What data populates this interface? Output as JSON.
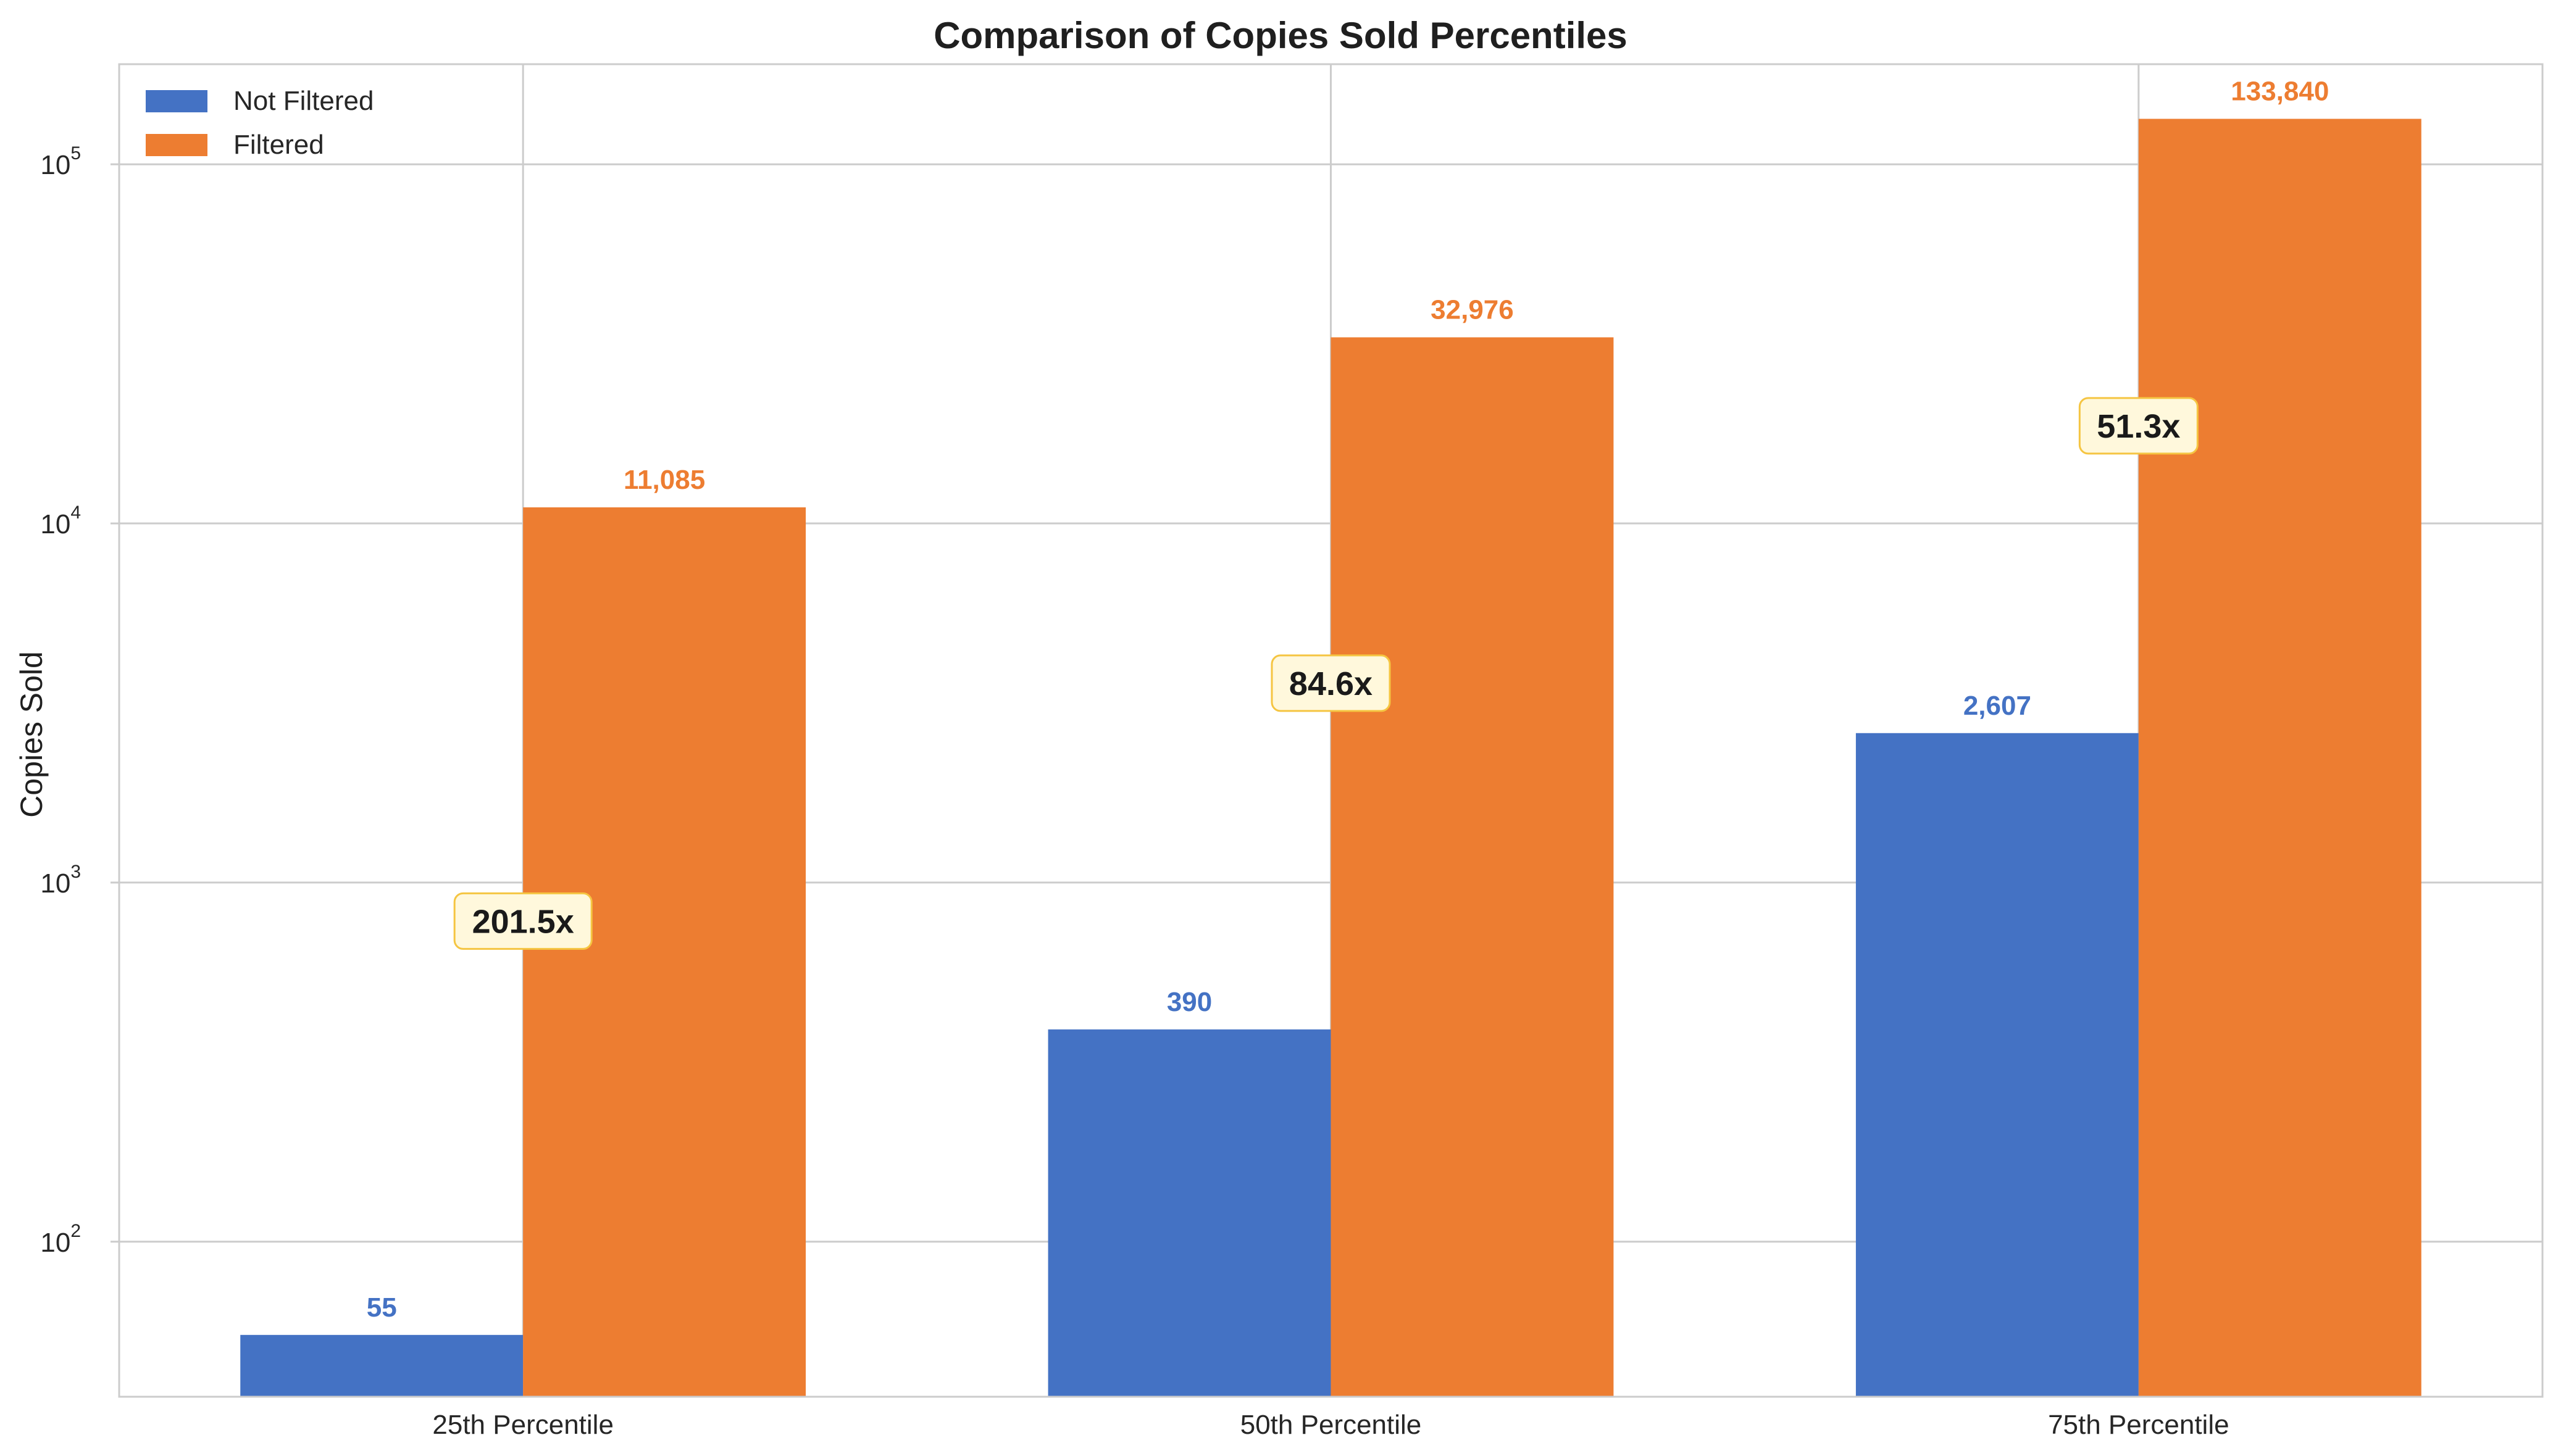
{
  "chart_data": {
    "type": "bar",
    "title": "Comparison of Copies Sold Percentiles",
    "ylabel": "Copies Sold",
    "xlabel": "",
    "yscale": "log",
    "ylim": [
      37,
      190000
    ],
    "yticks": [
      {
        "value": 100,
        "base": "10",
        "exp": "2"
      },
      {
        "value": 1000,
        "base": "10",
        "exp": "3"
      },
      {
        "value": 10000,
        "base": "10",
        "exp": "4"
      },
      {
        "value": 100000,
        "base": "10",
        "exp": "5"
      }
    ],
    "categories": [
      "25th Percentile",
      "50th Percentile",
      "75th Percentile"
    ],
    "series": [
      {
        "name": "Not Filtered",
        "color": "#4472C4",
        "values": [
          55,
          390,
          2607
        ],
        "labels": [
          "55",
          "390",
          "2,607"
        ]
      },
      {
        "name": "Filtered",
        "color": "#ED7D31",
        "values": [
          11085,
          32976,
          133840
        ],
        "labels": [
          "11,085",
          "32,976",
          "133,840"
        ]
      }
    ],
    "ratios": [
      {
        "label": "201.5x",
        "value": 781
      },
      {
        "label": "84.6x",
        "value": 3590
      },
      {
        "label": "51.3x",
        "value": 18700
      }
    ],
    "grid": true,
    "legend_position": "top-left",
    "annotation_style": {
      "fill": "#FFF8DC",
      "stroke": "#F5C542"
    }
  }
}
